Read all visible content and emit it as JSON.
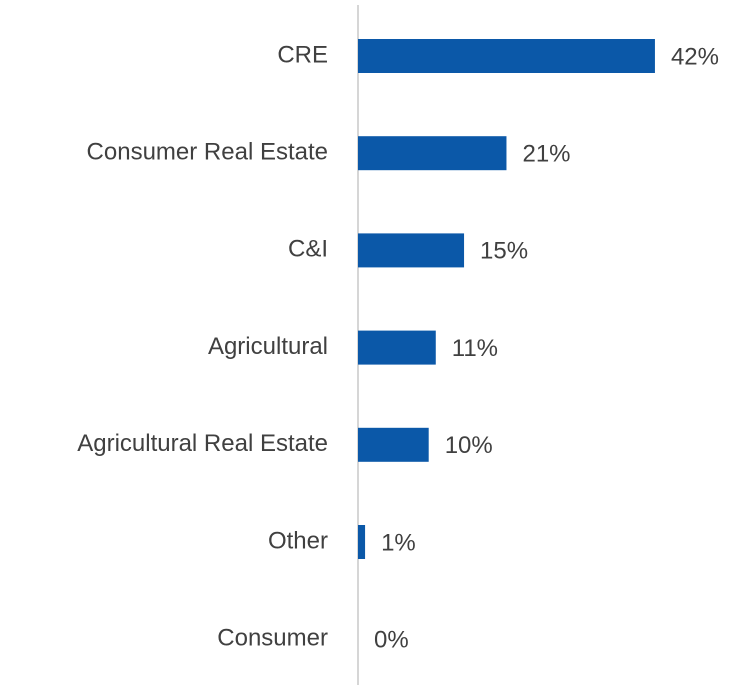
{
  "chart_data": {
    "type": "bar",
    "orientation": "horizontal",
    "categories": [
      "CRE",
      "Consumer Real Estate",
      "C&I",
      "Agricultural",
      "Agricultural Real Estate",
      "Other",
      "Consumer"
    ],
    "values": [
      42,
      21,
      15,
      11,
      10,
      1,
      0
    ],
    "value_labels": [
      "42%",
      "21%",
      "15%",
      "11%",
      "10%",
      "1%",
      "0%"
    ],
    "color": "#0b58a8"
  }
}
